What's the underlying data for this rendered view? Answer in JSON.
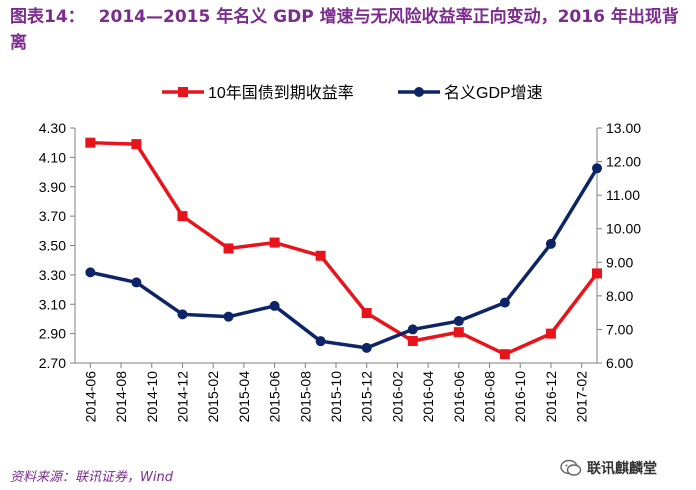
{
  "figure": {
    "label": "图表14：",
    "title": "2014—2015 年名义 GDP 增速与无风险收益率正向变动，2016 年出现背离"
  },
  "source": "资料来源：联讯证券，Wind",
  "watermark": "联讯麒麟堂",
  "colors": {
    "title": "#7B2C8E",
    "bond": "#E8141C",
    "gdp": "#0D2466"
  },
  "chart_data": {
    "type": "line",
    "categories": [
      "2014-06",
      "2014-08",
      "2014-10",
      "2014-12",
      "2015-02",
      "2015-04",
      "2015-06",
      "2015-08",
      "2015-10",
      "2015-12",
      "2016-02",
      "2016-04",
      "2016-06",
      "2016-08",
      "2016-10",
      "2016-12",
      "2017-02"
    ],
    "left_axis": {
      "ylim": [
        2.7,
        4.3
      ],
      "ticks": [
        "2.70",
        "2.90",
        "3.10",
        "3.30",
        "3.50",
        "3.70",
        "3.90",
        "4.10",
        "4.30"
      ]
    },
    "right_axis": {
      "ylim": [
        6.0,
        13.0
      ],
      "ticks": [
        "6.00",
        "7.00",
        "8.00",
        "9.00",
        "10.00",
        "11.00",
        "12.00",
        "13.00"
      ]
    },
    "legend_position": "top",
    "series": [
      {
        "name": "10年国债到期收益率",
        "axis": "left",
        "marker": "square",
        "points": [
          [
            "2014-06",
            4.2
          ],
          [
            "2014-09",
            4.19
          ],
          [
            "2014-12",
            3.7
          ],
          [
            "2015-03",
            3.48
          ],
          [
            "2015-06",
            3.52
          ],
          [
            "2015-09",
            3.43
          ],
          [
            "2015-12",
            3.04
          ],
          [
            "2016-03",
            2.85
          ],
          [
            "2016-06",
            2.91
          ],
          [
            "2016-09",
            2.76
          ],
          [
            "2016-12",
            2.9
          ],
          [
            "2017-03",
            3.31
          ]
        ]
      },
      {
        "name": "名义GDP增速",
        "axis": "right",
        "marker": "circle",
        "points": [
          [
            "2014-06",
            8.7
          ],
          [
            "2014-09",
            8.4
          ],
          [
            "2014-12",
            7.45
          ],
          [
            "2015-03",
            7.38
          ],
          [
            "2015-06",
            7.7
          ],
          [
            "2015-09",
            6.65
          ],
          [
            "2015-12",
            6.45
          ],
          [
            "2016-03",
            7.0
          ],
          [
            "2016-06",
            7.25
          ],
          [
            "2016-09",
            7.8
          ],
          [
            "2016-12",
            9.55
          ],
          [
            "2017-03",
            11.8
          ]
        ]
      }
    ]
  }
}
